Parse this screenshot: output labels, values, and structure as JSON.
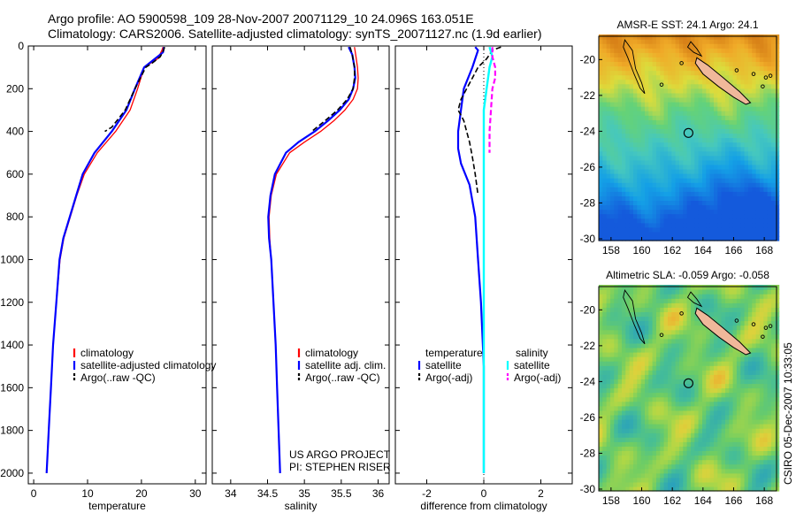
{
  "header": {
    "line1": "Argo profile: AO 5900598_109 28-Nov-2007 20071129_10 24.096S 163.051E",
    "line2": "Climatology: CARS2006. Satellite-adjusted climatology: synTS_20071127.nc (1.9d earlier)"
  },
  "colors": {
    "climatology": "#ff0000",
    "satellite": "#0000ff",
    "argo": "#000000",
    "sal_satellite": "#00ffff",
    "sal_argo": "#ff00ff",
    "land": "#f0b89a"
  },
  "side_text": "CSIRO 05-Dec-2007 10:33:05",
  "project_text": {
    "line1": "US ARGO PROJECT",
    "line2": "PI: STEPHEN RISER"
  },
  "chart_data": [
    {
      "type": "line",
      "xlabel": "temperature",
      "xlim": [
        -1,
        32
      ],
      "ylim": [
        0,
        2050
      ],
      "y_reversed": true,
      "xticks": [
        0,
        10,
        20,
        30
      ],
      "yticks": [
        0,
        200,
        400,
        600,
        800,
        1000,
        1200,
        1400,
        1600,
        1800,
        2000
      ],
      "legend": [
        "climatology",
        "satellite-adjusted climatology",
        "Argo(..raw -QC)"
      ],
      "series": [
        {
          "name": "climatology",
          "style": "clim",
          "points": [
            [
              24.0,
              5
            ],
            [
              23.8,
              20
            ],
            [
              23.0,
              60
            ],
            [
              20.5,
              100
            ],
            [
              19.3,
              200
            ],
            [
              17.9,
              300
            ],
            [
              15.2,
              400
            ],
            [
              11.8,
              500
            ],
            [
              9.4,
              600
            ],
            [
              8.0,
              700
            ],
            [
              6.8,
              800
            ],
            [
              5.6,
              900
            ],
            [
              4.9,
              1000
            ],
            [
              4.2,
              1200
            ],
            [
              3.6,
              1400
            ],
            [
              3.2,
              1600
            ],
            [
              2.8,
              1800
            ],
            [
              2.4,
              2000
            ]
          ]
        },
        {
          "name": "satellite-adjusted climatology",
          "style": "sat",
          "points": [
            [
              24.2,
              5
            ],
            [
              24.0,
              30
            ],
            [
              22.5,
              60
            ],
            [
              20.5,
              100
            ],
            [
              18.8,
              200
            ],
            [
              17.2,
              300
            ],
            [
              14.5,
              400
            ],
            [
              11.3,
              500
            ],
            [
              9.1,
              600
            ],
            [
              7.9,
              700
            ],
            [
              6.7,
              800
            ],
            [
              5.5,
              900
            ],
            [
              4.8,
              1000
            ],
            [
              4.2,
              1200
            ],
            [
              3.6,
              1400
            ],
            [
              3.2,
              1600
            ],
            [
              2.8,
              1800
            ],
            [
              2.4,
              2000
            ]
          ]
        },
        {
          "name": "Argo(..raw -QC)",
          "style": "argo",
          "points": [
            [
              24.3,
              5
            ],
            [
              24.1,
              20
            ],
            [
              23.5,
              50
            ],
            [
              22.0,
              80
            ],
            [
              20.8,
              100
            ],
            [
              18.8,
              200
            ],
            [
              17.0,
              300
            ],
            [
              14.5,
              380
            ],
            [
              13.2,
              400
            ]
          ]
        }
      ]
    },
    {
      "type": "line",
      "xlabel": "salinity",
      "xlim": [
        33.75,
        36.15
      ],
      "ylim": [
        0,
        2050
      ],
      "y_reversed": true,
      "xticks": [
        34,
        34.5,
        35,
        35.5,
        36
      ],
      "yticks": [
        0,
        200,
        400,
        600,
        800,
        1000,
        1200,
        1400,
        1600,
        1800,
        2000
      ],
      "legend": [
        "climatology",
        "satellite adj. clim.",
        "Argo(..raw -QC)"
      ],
      "series": [
        {
          "name": "climatology",
          "style": "clim",
          "points": [
            [
              35.68,
              5
            ],
            [
              35.7,
              50
            ],
            [
              35.72,
              100
            ],
            [
              35.73,
              150
            ],
            [
              35.72,
              200
            ],
            [
              35.66,
              250
            ],
            [
              35.55,
              300
            ],
            [
              35.4,
              350
            ],
            [
              35.22,
              400
            ],
            [
              35.0,
              450
            ],
            [
              34.8,
              500
            ],
            [
              34.62,
              600
            ],
            [
              34.55,
              700
            ],
            [
              34.52,
              800
            ],
            [
              34.53,
              900
            ],
            [
              34.55,
              1000
            ],
            [
              34.58,
              1200
            ],
            [
              34.61,
              1400
            ],
            [
              34.63,
              1600
            ],
            [
              34.65,
              1800
            ],
            [
              34.67,
              2000
            ]
          ]
        },
        {
          "name": "satellite adj. clim.",
          "style": "sat",
          "points": [
            [
              35.6,
              5
            ],
            [
              35.65,
              40
            ],
            [
              35.68,
              100
            ],
            [
              35.69,
              150
            ],
            [
              35.66,
              200
            ],
            [
              35.6,
              250
            ],
            [
              35.48,
              300
            ],
            [
              35.32,
              350
            ],
            [
              35.14,
              400
            ],
            [
              34.92,
              450
            ],
            [
              34.75,
              500
            ],
            [
              34.6,
              600
            ],
            [
              34.54,
              700
            ],
            [
              34.51,
              800
            ],
            [
              34.52,
              900
            ],
            [
              34.55,
              1000
            ],
            [
              34.58,
              1200
            ],
            [
              34.61,
              1400
            ],
            [
              34.63,
              1600
            ],
            [
              34.65,
              1800
            ],
            [
              34.67,
              2000
            ]
          ]
        },
        {
          "name": "Argo(..raw -QC)",
          "style": "argo",
          "points": [
            [
              35.62,
              5
            ],
            [
              35.65,
              40
            ],
            [
              35.68,
              100
            ],
            [
              35.68,
              150
            ],
            [
              35.66,
              200
            ],
            [
              35.58,
              250
            ],
            [
              35.45,
              300
            ],
            [
              35.28,
              350
            ],
            [
              35.1,
              400
            ]
          ]
        }
      ]
    },
    {
      "type": "line",
      "xlabel": "difference from climatology",
      "xlim": [
        -3.1,
        3.1
      ],
      "ylim": [
        0,
        2050
      ],
      "y_reversed": true,
      "xticks": [
        -2,
        0,
        2
      ],
      "yticks": [
        0,
        200,
        400,
        600,
        800,
        1000,
        1200,
        1400,
        1600,
        1800,
        2000
      ],
      "legend_temperature": {
        "title": "temperature",
        "items": [
          "satellite",
          "Argo(-adj)"
        ]
      },
      "legend_salinity": {
        "title": "salinity",
        "items": [
          "satellite",
          "Argo(-adj)"
        ]
      },
      "series": [
        {
          "name": "temperature satellite",
          "style": "sat",
          "points": [
            [
              -0.3,
              5
            ],
            [
              -0.2,
              20
            ],
            [
              -0.4,
              100
            ],
            [
              -0.7,
              200
            ],
            [
              -0.8,
              300
            ],
            [
              -0.9,
              400
            ],
            [
              -0.9,
              480
            ],
            [
              -0.8,
              550
            ],
            [
              -0.5,
              650
            ],
            [
              -0.3,
              800
            ],
            [
              -0.2,
              1000
            ],
            [
              -0.1,
              1200
            ],
            [
              0,
              1500
            ],
            [
              0,
              2000
            ]
          ]
        },
        {
          "name": "temperature Argo(-adj)",
          "style": "argo",
          "points": [
            [
              0.6,
              5
            ],
            [
              0.3,
              20
            ],
            [
              0.1,
              60
            ],
            [
              -0.2,
              100
            ],
            [
              -0.4,
              150
            ],
            [
              -0.6,
              200
            ],
            [
              -0.8,
              250
            ],
            [
              -0.9,
              300
            ],
            [
              -0.7,
              350
            ],
            [
              -0.6,
              400
            ],
            [
              -0.5,
              450
            ],
            [
              -0.4,
              520
            ],
            [
              -0.3,
              600
            ],
            [
              -0.2,
              700
            ]
          ]
        },
        {
          "name": "salinity satellite",
          "style": "salsat",
          "points": [
            [
              0.2,
              5
            ],
            [
              0.3,
              50
            ],
            [
              0.2,
              100
            ],
            [
              0.1,
              200
            ],
            [
              0.0,
              300
            ],
            [
              0.0,
              400
            ],
            [
              0,
              500
            ],
            [
              0,
              2000
            ]
          ]
        },
        {
          "name": "salinity Argo(-adj)",
          "style": "salargo",
          "points": [
            [
              0.3,
              5
            ],
            [
              0.3,
              50
            ],
            [
              0.4,
              100
            ],
            [
              0.4,
              150
            ],
            [
              0.3,
              200
            ],
            [
              0.25,
              300
            ],
            [
              0.2,
              400
            ],
            [
              0.2,
              500
            ]
          ]
        }
      ]
    },
    {
      "type": "heatmap",
      "title": "AMSR-E SST: 24.1 Argo: 24.1",
      "xlim": [
        157.2,
        168.8
      ],
      "ylim": [
        -30.1,
        -18.7
      ],
      "xticks": [
        158,
        160,
        162,
        164,
        166,
        168
      ],
      "yticks": [
        -20,
        -22,
        -24,
        -26,
        -28,
        -30
      ],
      "argo_position": [
        163.051,
        -24.096
      ],
      "field": "sst"
    },
    {
      "type": "heatmap",
      "title": "Altimetric SLA: -0.059 Argo: -0.058",
      "xlim": [
        157.2,
        168.8
      ],
      "ylim": [
        -30.1,
        -18.7
      ],
      "xticks": [
        158,
        160,
        162,
        164,
        166,
        168
      ],
      "yticks": [
        -20,
        -22,
        -24,
        -26,
        -28,
        -30
      ],
      "argo_position": [
        163.051,
        -24.096
      ],
      "field": "sla"
    }
  ]
}
